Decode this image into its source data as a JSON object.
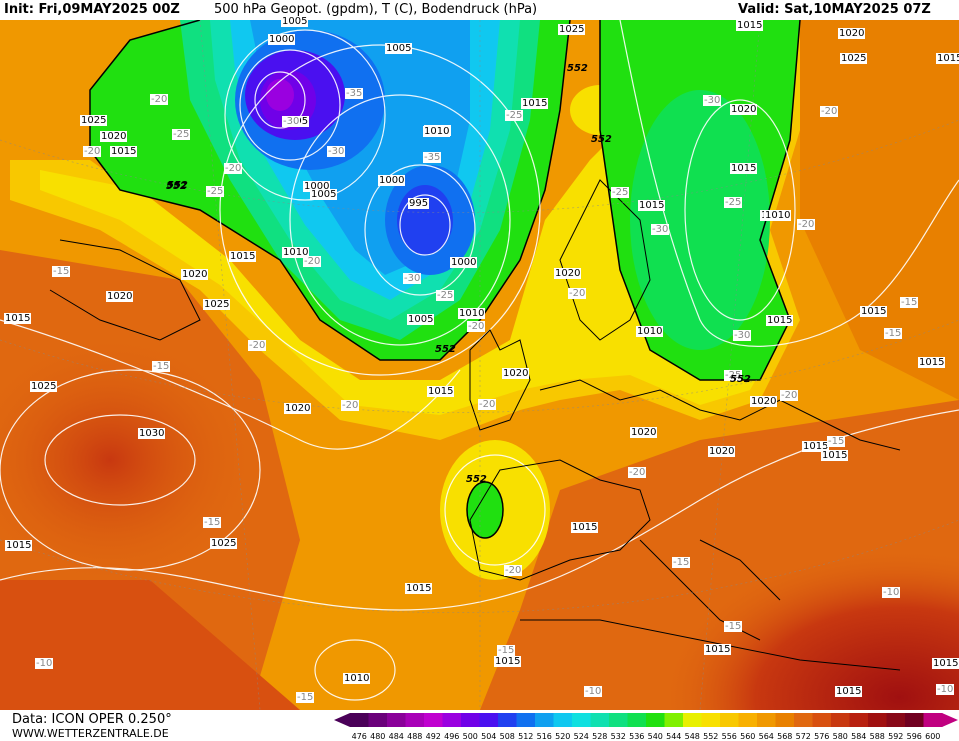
{
  "header": {
    "init": "Init: Fri,09MAY2025 00Z",
    "title": "500 hPa Geopot. (gpdm), T (C), Bodendruck (hPa)",
    "valid": "Valid: Sat,10MAY2025 07Z"
  },
  "footer": {
    "data_source": "Data: ICON OPER 0.250°",
    "website": "WWW.WETTERZENTRALE.DE"
  },
  "colorbar": {
    "ticks": [
      "476",
      "480",
      "484",
      "488",
      "492",
      "496",
      "500",
      "504",
      "508",
      "512",
      "516",
      "520",
      "524",
      "528",
      "532",
      "536",
      "540",
      "544",
      "548",
      "552",
      "556",
      "560",
      "564",
      "568",
      "572",
      "576",
      "580",
      "584",
      "588",
      "592",
      "596",
      "600"
    ],
    "colors": [
      "#4a0058",
      "#6a007a",
      "#8a009a",
      "#a800b8",
      "#c000d0",
      "#9a00e0",
      "#7000e8",
      "#4a10f0",
      "#2040f0",
      "#1070f0",
      "#10a0f0",
      "#10c8f0",
      "#10e0e0",
      "#10e0b0",
      "#10e080",
      "#10e050",
      "#20e010",
      "#80f000",
      "#e8f000",
      "#f8e000",
      "#f8c800",
      "#f8b000",
      "#f09800",
      "#e88000",
      "#e06810",
      "#d85010",
      "#c83810",
      "#b82010",
      "#a01010",
      "#880818",
      "#700020",
      "#c00080"
    ]
  },
  "pressure_labels": [
    "1005",
    "1000",
    "995",
    "1025",
    "1020",
    "1015",
    "1010",
    "1030",
    "1005",
    "1000",
    "995",
    "1025",
    "1015",
    "1020",
    "1010",
    "1015",
    "1020",
    "1025",
    "1015",
    "1000",
    "1005",
    "1010",
    "1015",
    "1020",
    "1010",
    "1000",
    "1005",
    "1010",
    "1015",
    "1020",
    "1025",
    "1015",
    "1020",
    "1015",
    "1010",
    "1020",
    "1015",
    "1020",
    "1025",
    "1015",
    "1015",
    "1020",
    "1010",
    "1015",
    "1015",
    "1020",
    "1015",
    "1015",
    "1010",
    "1015",
    "1015",
    "1015",
    "1015",
    "1020",
    "1025",
    "1015",
    "1015"
  ],
  "temperature_labels": [
    "-35",
    "-30",
    "-25",
    "-20",
    "-20",
    "-25",
    "-30",
    "-35",
    "-25",
    "-30",
    "-20",
    "-20",
    "-15",
    "-15",
    "-20",
    "-20",
    "-20",
    "-15",
    "-20",
    "-20",
    "-25",
    "-30",
    "-25",
    "-20",
    "-30",
    "-15",
    "-20",
    "-15",
    "-15",
    "-10",
    "-10",
    "-15",
    "-15",
    "-15",
    "-10",
    "-15",
    "-10",
    "-20",
    "-25",
    "-30",
    "-25",
    "-20",
    "-20"
  ],
  "geopotential_labels": [
    "552",
    "552",
    "552",
    "552",
    "552",
    "552",
    "552"
  ]
}
